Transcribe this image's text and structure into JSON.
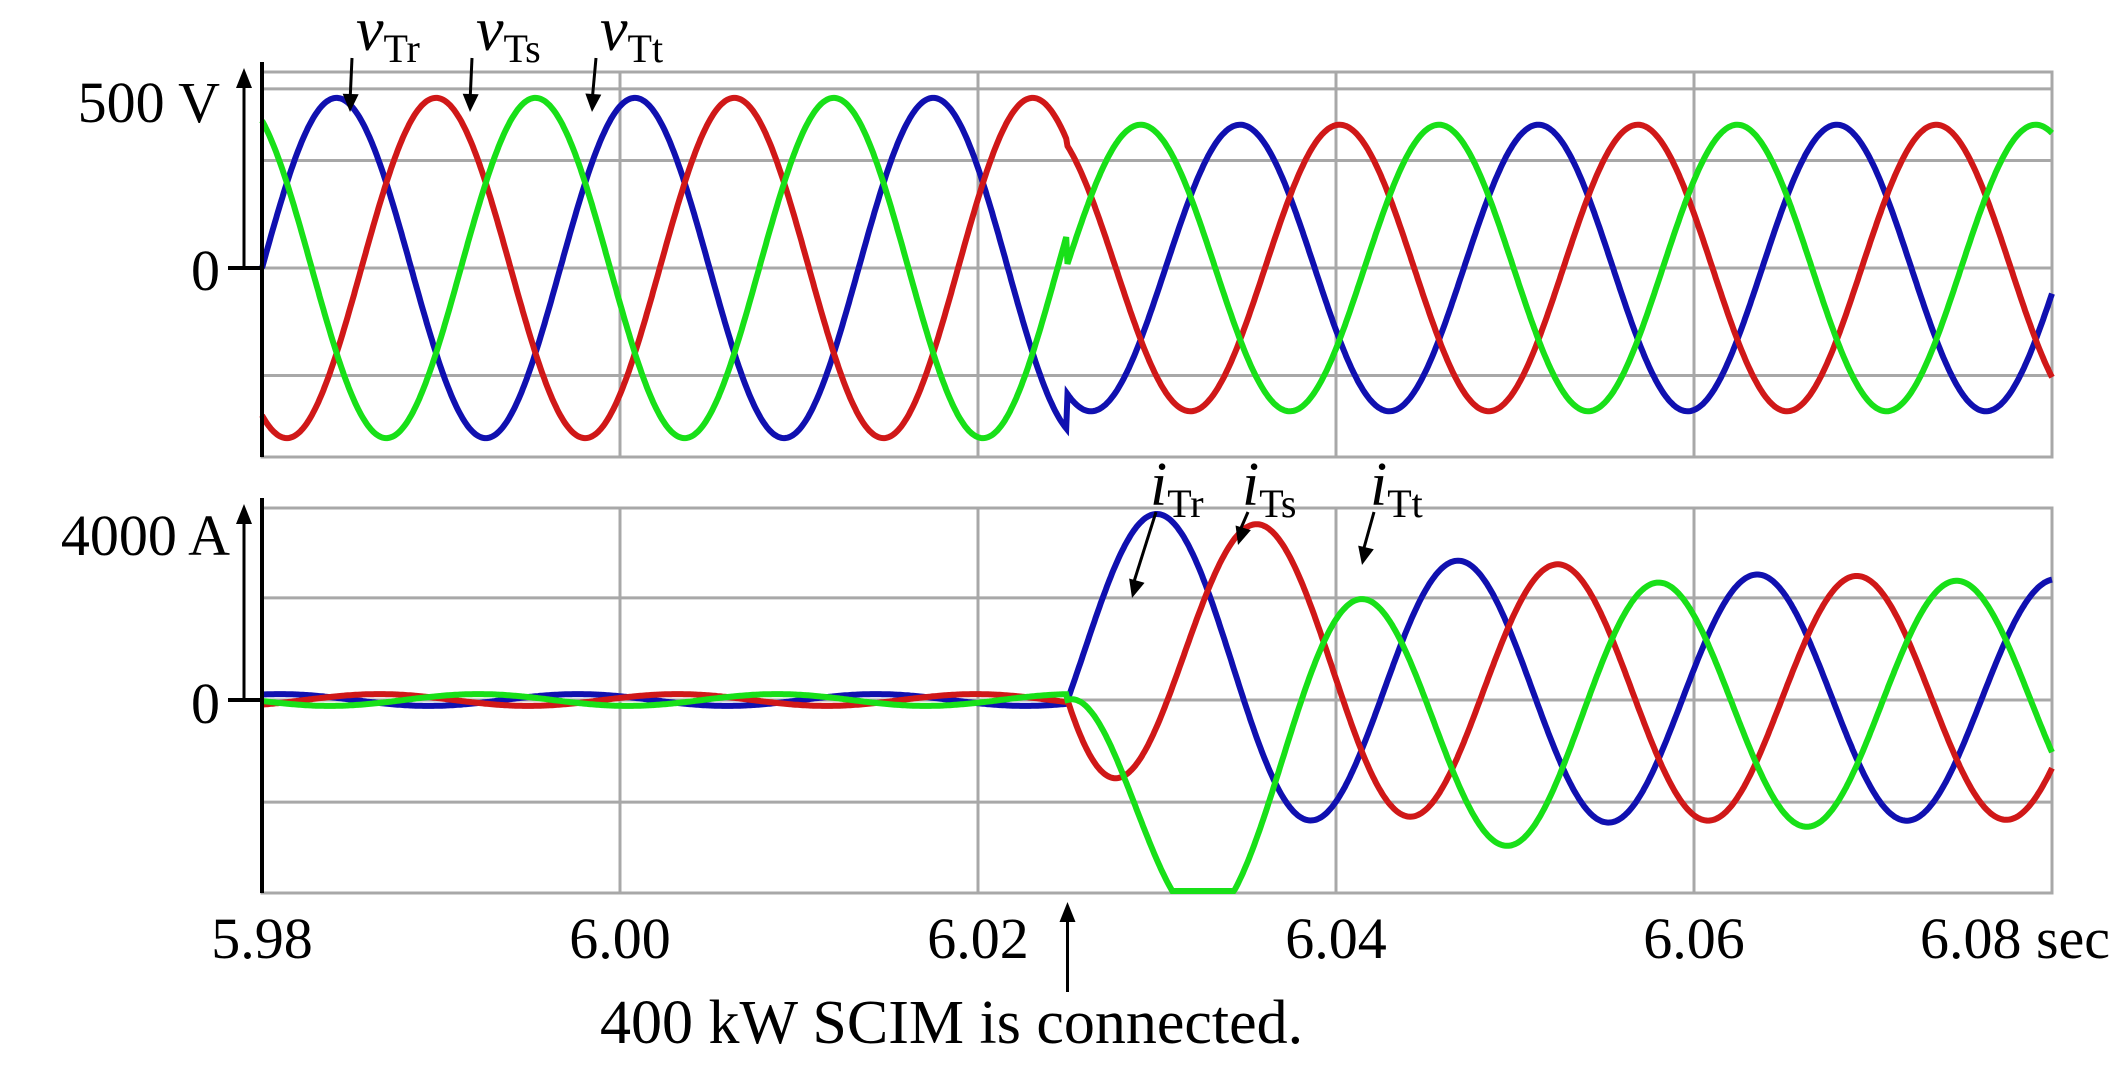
{
  "colors": {
    "r": "#1010b0",
    "s": "#d01818",
    "t": "#18e018",
    "grid": "#a8a8a8"
  },
  "chart_data": [
    {
      "type": "line",
      "id": "voltage",
      "xlim": [
        5.98,
        6.08
      ],
      "ylim": [
        -500,
        575
      ],
      "y_unit_label": "500 V",
      "y_ticks": [
        {
          "value": 500,
          "label": "500 V"
        },
        {
          "value": 0,
          "label": "0"
        }
      ],
      "grid_y": [
        -300,
        0,
        300,
        500
      ],
      "grid_x": [
        6.0,
        6.02,
        6.04,
        6.06
      ],
      "event_time": 6.025,
      "series": [
        {
          "name": "vTr",
          "sym": "v",
          "sub": "Tr",
          "color_key": "r",
          "phase_deg": 0
        },
        {
          "name": "vTs",
          "sym": "v",
          "sub": "Ts",
          "color_key": "s",
          "phase_deg": -120
        },
        {
          "name": "vTt",
          "sym": "v",
          "sub": "Tt",
          "color_key": "t",
          "phase_deg": 120
        }
      ],
      "amplitude_before": 475,
      "amplitude_after": 400
    },
    {
      "type": "line",
      "id": "current",
      "xlim": [
        5.98,
        6.08
      ],
      "ylim": [
        -4900,
        4900
      ],
      "y_unit_label": "4000 A",
      "y_ticks": [
        {
          "value": 4000,
          "label": "4000 A"
        },
        {
          "value": 0,
          "label": "0"
        }
      ],
      "grid_y": [
        -2600,
        0,
        2600
      ],
      "grid_x": [
        6.0,
        6.02,
        6.04,
        6.06
      ],
      "event_time": 6.025,
      "series": [
        {
          "name": "iTr",
          "sym": "i",
          "sub": "Tr",
          "color_key": "r"
        },
        {
          "name": "iTs",
          "sym": "i",
          "sub": "Ts",
          "color_key": "s"
        },
        {
          "name": "iTt",
          "sym": "i",
          "sub": "Tt",
          "color_key": "t"
        }
      ],
      "peak_current": 4000,
      "steady_current": 3000,
      "idle_current": 150
    }
  ],
  "x_ticks": [
    {
      "value": 5.98,
      "label": "5.98"
    },
    {
      "value": 6.0,
      "label": "6.00"
    },
    {
      "value": 6.02,
      "label": "6.02"
    },
    {
      "value": 6.04,
      "label": "6.04"
    },
    {
      "value": 6.06,
      "label": "6.06"
    },
    {
      "value": 6.08,
      "label": "6.08 sec"
    }
  ],
  "annotation": {
    "text": "400 kW SCIM is connected.",
    "time": 6.025
  }
}
